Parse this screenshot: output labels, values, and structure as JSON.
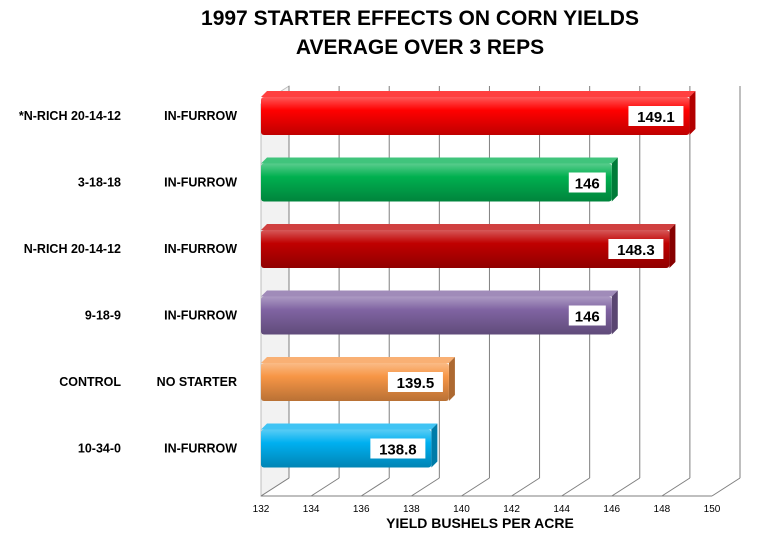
{
  "chart_data": {
    "type": "bar",
    "orientation": "horizontal",
    "title": "1997 STARTER EFFECTS ON CORN YIELDS",
    "subtitle": "AVERAGE OVER 3 REPS",
    "xlabel": "YIELD BUSHELS PER ACRE",
    "ylabel": "",
    "xlim": [
      132,
      150
    ],
    "x_ticks": [
      132,
      134,
      136,
      138,
      140,
      142,
      144,
      146,
      148,
      150
    ],
    "grid": true,
    "legend": "none",
    "categories": [
      {
        "product": "*N-RICH 20-14-12",
        "method": "IN-FURROW",
        "value": 149.1,
        "label": "149.1",
        "color": "#ff0000"
      },
      {
        "product": "3-18-18",
        "method": "IN-FURROW",
        "value": 146,
        "label": "146",
        "color": "#00b050"
      },
      {
        "product": "N-RICH 20-14-12",
        "method": "IN-FURROW",
        "value": 148.3,
        "label": "148.3",
        "color": "#c00000"
      },
      {
        "product": "9-18-9",
        "method": "IN-FURROW",
        "value": 146,
        "label": "146",
        "color": "#8064a2"
      },
      {
        "product": "CONTROL",
        "method": "NO STARTER",
        "value": 139.5,
        "label": "139.5",
        "color": "#f79646"
      },
      {
        "product": "10-34-0",
        "method": "IN-FURROW",
        "value": 138.8,
        "label": "138.8",
        "color": "#00b0f0"
      }
    ]
  }
}
